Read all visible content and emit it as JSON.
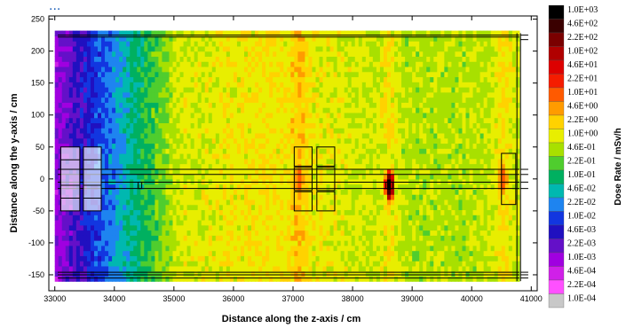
{
  "chart_data": {
    "type": "heatmap",
    "title": "",
    "xlabel": "Distance along the z-axis / cm",
    "ylabel": "Distance along the y-axis / cm",
    "xlim": [
      32900,
      41100
    ],
    "ylim": [
      -175,
      255
    ],
    "x_ticks": [
      "33000",
      "34000",
      "35000",
      "36000",
      "37000",
      "38000",
      "39000",
      "40000",
      "41000"
    ],
    "y_ticks": [
      "250",
      "200",
      "150",
      "100",
      "50",
      "0",
      "-50",
      "-100",
      "-150"
    ],
    "x_tick_values": [
      33000,
      34000,
      35000,
      36000,
      37000,
      38000,
      39000,
      40000,
      41000
    ],
    "y_tick_values": [
      250,
      200,
      150,
      100,
      50,
      0,
      -50,
      -100,
      -150
    ],
    "colorbar": {
      "title": "Dose Rate / mSv/h",
      "labels": [
        "1.0E+03",
        "4.6E+02",
        "2.2E+02",
        "1.0E+02",
        "4.6E+01",
        "2.2E+01",
        "1.0E+01",
        "4.6E+00",
        "2.2E+00",
        "1.0E+00",
        "4.6E-01",
        "2.2E-01",
        "1.0E-01",
        "4.6E-02",
        "2.2E-02",
        "1.0E-02",
        "4.6E-03",
        "2.2E-03",
        "1.0E-03",
        "4.6E-04",
        "2.2E-04",
        "1.0E-04"
      ],
      "colors": [
        "#000000",
        "#3a0000",
        "#7a0000",
        "#b00000",
        "#dd0000",
        "#f51c00",
        "#ff5a00",
        "#ff9b00",
        "#ffd200",
        "#e8ee00",
        "#a8e000",
        "#4fcd2e",
        "#00b060",
        "#00b8b0",
        "#1e84f0",
        "#1236e0",
        "#2010c0",
        "#6410c8",
        "#a000e0",
        "#d020e8",
        "#ff50ff",
        "#c8c8c8"
      ]
    },
    "data_range": {
      "z": [
        33000,
        40800
      ],
      "y": [
        -160,
        228
      ]
    },
    "background_level": "1.0E+00",
    "hotspots": [
      {
        "z": 37100,
        "y": 0,
        "level": "1.0E+01"
      },
      {
        "z": 38620,
        "y": -10,
        "level": "1.0E+03"
      },
      {
        "z": 40520,
        "y": 0,
        "level": "1.0E+01"
      }
    ],
    "heading_fragment": "...",
    "colors": {
      "background": "#ffffff",
      "outline": "#000000",
      "heading_fragment": "#1c5fb8"
    }
  }
}
